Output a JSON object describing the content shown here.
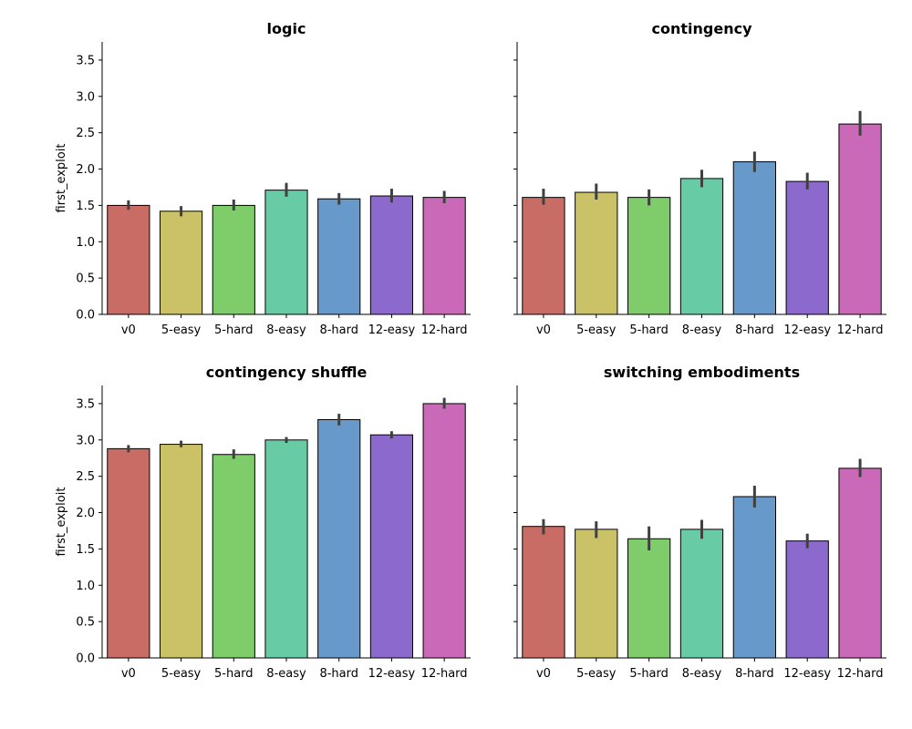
{
  "chart_data": [
    {
      "type": "bar",
      "title": "logic",
      "xlabel": "",
      "ylabel": "first_exploit",
      "categories": [
        "v0",
        "5-easy",
        "5-hard",
        "8-easy",
        "8-hard",
        "12-easy",
        "12-hard"
      ],
      "values": [
        1.5,
        1.42,
        1.5,
        1.71,
        1.59,
        1.63,
        1.61
      ],
      "error_low": [
        1.44,
        1.35,
        1.43,
        1.62,
        1.51,
        1.54,
        1.53
      ],
      "error_high": [
        1.57,
        1.49,
        1.58,
        1.81,
        1.67,
        1.73,
        1.7
      ],
      "ylim": [
        0,
        3.75
      ],
      "yticks": [
        "0.0",
        "0.5",
        "1.0",
        "1.5",
        "2.0",
        "2.5",
        "3.0",
        "3.5"
      ],
      "show_ytick_labels": true
    },
    {
      "type": "bar",
      "title": "contingency",
      "xlabel": "",
      "ylabel": "",
      "categories": [
        "v0",
        "5-easy",
        "5-hard",
        "8-easy",
        "8-hard",
        "12-easy",
        "12-hard"
      ],
      "values": [
        1.61,
        1.68,
        1.61,
        1.87,
        2.1,
        1.83,
        2.62
      ],
      "error_low": [
        1.51,
        1.58,
        1.5,
        1.75,
        1.96,
        1.72,
        2.46
      ],
      "error_high": [
        1.73,
        1.8,
        1.72,
        1.99,
        2.24,
        1.95,
        2.8
      ],
      "ylim": [
        0,
        3.75
      ],
      "yticks": [
        "0.0",
        "0.5",
        "1.0",
        "1.5",
        "2.0",
        "2.5",
        "3.0",
        "3.5"
      ],
      "show_ytick_labels": false
    },
    {
      "type": "bar",
      "title": "contingency shuffle",
      "xlabel": "",
      "ylabel": "first_exploit",
      "categories": [
        "v0",
        "5-easy",
        "5-hard",
        "8-easy",
        "8-hard",
        "12-easy",
        "12-hard"
      ],
      "values": [
        2.88,
        2.94,
        2.8,
        3.0,
        3.28,
        3.07,
        3.5
      ],
      "error_low": [
        2.83,
        2.9,
        2.74,
        2.96,
        3.2,
        3.02,
        3.43
      ],
      "error_high": [
        2.93,
        2.99,
        2.87,
        3.04,
        3.36,
        3.12,
        3.58
      ],
      "ylim": [
        0,
        3.75
      ],
      "yticks": [
        "0.0",
        "0.5",
        "1.0",
        "1.5",
        "2.0",
        "2.5",
        "3.0",
        "3.5"
      ],
      "show_ytick_labels": true
    },
    {
      "type": "bar",
      "title": "switching embodiments",
      "xlabel": "",
      "ylabel": "",
      "categories": [
        "v0",
        "5-easy",
        "5-hard",
        "8-easy",
        "8-hard",
        "12-easy",
        "12-hard"
      ],
      "values": [
        1.81,
        1.77,
        1.64,
        1.77,
        2.22,
        1.61,
        2.61
      ],
      "error_low": [
        1.7,
        1.65,
        1.48,
        1.64,
        2.07,
        1.51,
        2.49
      ],
      "error_high": [
        1.91,
        1.88,
        1.81,
        1.9,
        2.37,
        1.71,
        2.74
      ],
      "ylim": [
        0,
        3.75
      ],
      "yticks": [
        "0.0",
        "0.5",
        "1.0",
        "1.5",
        "2.0",
        "2.5",
        "3.0",
        "3.5"
      ],
      "show_ytick_labels": false
    }
  ],
  "colors": {
    "bars": [
      "#c96c65",
      "#cbc268",
      "#7fcc6b",
      "#67cca5",
      "#6799cb",
      "#8c69cc",
      "#ca69b7"
    ],
    "errorbar": "#404040",
    "edge": "#000000"
  }
}
